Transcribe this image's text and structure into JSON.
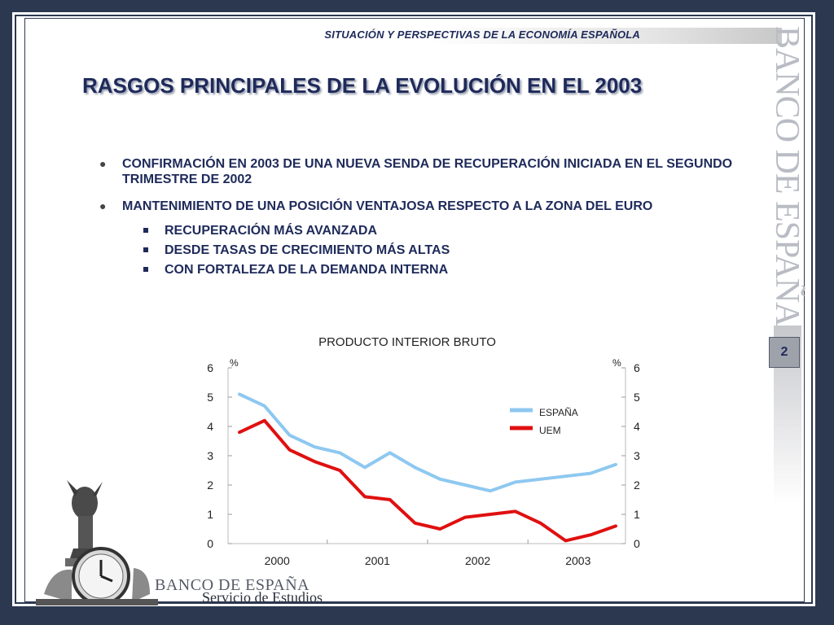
{
  "header": {
    "subtitle": "SITUACIÓN Y PERSPECTIVAS DE LA ECONOMÍA ESPAÑOLA"
  },
  "title": "RASGOS PRINCIPALES DE LA EVOLUCIÓN EN EL 2003",
  "bullets": [
    {
      "text": "CONFIRMACIÓN EN 2003 DE UNA NUEVA SENDA DE RECUPERACIÓN INICIADA EN EL SEGUNDO TRIMESTRE DE 2002"
    },
    {
      "text": "MANTENIMIENTO DE UNA POSICIÓN VENTAJOSA RESPECTO A LA ZONA DEL EURO",
      "sub": [
        {
          "text": "RECUPERACIÓN MÁS AVANZADA"
        },
        {
          "text": "DESDE TASAS DE CRECIMIENTO MÁS ALTAS"
        },
        {
          "text": "CON FORTALEZA DE LA DEMANDA INTERNA"
        }
      ]
    }
  ],
  "watermark": {
    "text": "BANCO DE ESPAÑA"
  },
  "page_number": "2",
  "logo": {
    "name": "BANCO DE ESPAÑA",
    "subtitle": "Servicio de Estudios"
  },
  "chart_data": {
    "type": "line",
    "title": "PRODUCTO INTERIOR BRUTO",
    "ylabel_left": "%",
    "ylabel_right": "%",
    "ylim": [
      0,
      6
    ],
    "yticks": [
      "0",
      "1",
      "2",
      "3",
      "4",
      "5",
      "6"
    ],
    "x_labels": [
      "2000",
      "2001",
      "2002",
      "2003"
    ],
    "x_quarters": [
      "2000-Q1",
      "2000-Q2",
      "2000-Q3",
      "2000-Q4",
      "2001-Q1",
      "2001-Q2",
      "2001-Q3",
      "2001-Q4",
      "2002-Q1",
      "2002-Q2",
      "2002-Q3",
      "2002-Q4",
      "2003-Q1",
      "2003-Q2",
      "2003-Q3",
      "2003-Q4"
    ],
    "legend_position": "right",
    "grid": false,
    "series": [
      {
        "name": "ESPAÑA",
        "color": "#8ec8f0",
        "values": [
          5.1,
          4.7,
          3.7,
          3.3,
          3.1,
          2.6,
          3.1,
          2.6,
          2.2,
          2.0,
          1.8,
          2.1,
          2.2,
          2.3,
          2.4,
          2.7
        ]
      },
      {
        "name": "UEM",
        "color": "#e01010",
        "values": [
          3.8,
          4.2,
          3.2,
          2.8,
          2.5,
          1.6,
          1.5,
          0.7,
          0.5,
          0.9,
          1.0,
          1.1,
          0.7,
          0.1,
          0.3,
          0.6
        ]
      }
    ]
  }
}
